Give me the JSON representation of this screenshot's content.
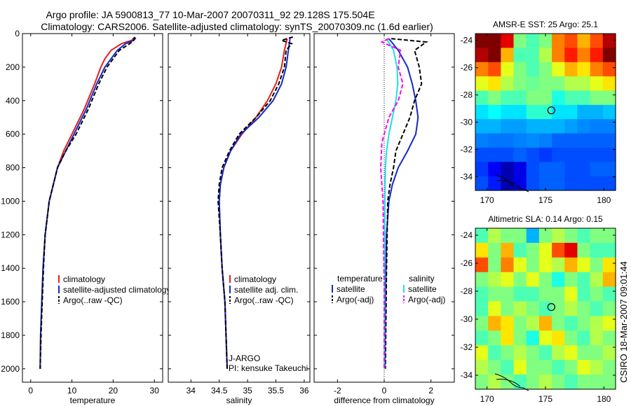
{
  "title": {
    "line1": "Argo profile: JA 5900813_77 10-Mar-2007 20070311_92 29.128S 175.504E",
    "line2": "Climatology: CARS2006. Satellite-adjusted climatology: synTS_20070309.nc (1.6d earlier)"
  },
  "side_label": "CSIRO 18-Mar-2007 09:01:44",
  "colors": {
    "climatology": "#e02020",
    "satellite": "#1428c8",
    "argo": "#000000",
    "sat_temp_diff": "#20e0e0",
    "sal_diff": "#ff00ff"
  },
  "chart_data": [
    {
      "type": "line",
      "id": "temperature",
      "xlabel": "temperature",
      "ylabel": "",
      "xlim": [
        -2,
        32
      ],
      "ylim": [
        2080,
        0
      ],
      "xticks": [
        0,
        10,
        20,
        30
      ],
      "yticks": [
        0,
        200,
        400,
        600,
        800,
        1000,
        1200,
        1400,
        1600,
        1800,
        2000
      ],
      "legend": [
        "climatology",
        "satellite-adjusted climatology",
        "Argo(..raw -QC)"
      ],
      "legend_placement": "bottom-right",
      "series": [
        {
          "name": "climatology",
          "style": "solid",
          "color": "#e02020",
          "x": [
            25,
            24.5,
            22,
            19.5,
            18,
            17,
            15.5,
            13,
            10,
            8,
            6.5,
            5.5,
            4.5,
            3.5,
            3,
            2.7,
            2.4,
            2.3
          ],
          "y": [
            25,
            40,
            60,
            100,
            150,
            200,
            300,
            450,
            600,
            700,
            800,
            900,
            1000,
            1200,
            1400,
            1600,
            1800,
            2000
          ]
        },
        {
          "name": "satellite-adjusted climatology",
          "style": "solid",
          "color": "#1428c8",
          "x": [
            25.5,
            25,
            23,
            21,
            19.5,
            18,
            16,
            13.5,
            10.5,
            8.5,
            6.5,
            5.5,
            4.5,
            3.5,
            3,
            2.7,
            2.4,
            2.3
          ],
          "y": [
            25,
            40,
            60,
            100,
            150,
            200,
            300,
            450,
            600,
            700,
            800,
            900,
            1000,
            1200,
            1400,
            1600,
            1800,
            2000
          ]
        },
        {
          "name": "Argo(..raw -QC)",
          "style": "dashed",
          "color": "#000000",
          "x": [
            25.2,
            25,
            24,
            21.5,
            20,
            18.5,
            16.5,
            14,
            11,
            8.5,
            6.5,
            5.5,
            4.5,
            3.5,
            3.1,
            2.8,
            2.5,
            2.3
          ],
          "y": [
            20,
            40,
            60,
            100,
            150,
            200,
            300,
            450,
            600,
            700,
            800,
            900,
            1000,
            1200,
            1400,
            1600,
            1800,
            2000
          ]
        }
      ]
    },
    {
      "type": "line",
      "id": "salinity",
      "xlabel": "salinity",
      "ylabel": "",
      "xlim": [
        33.6,
        36.1
      ],
      "ylim": [
        2080,
        0
      ],
      "xticks": [
        34,
        34.5,
        35,
        35.5,
        36
      ],
      "yticks": [
        0,
        200,
        400,
        600,
        800,
        1000,
        1200,
        1400,
        1600,
        1800,
        2000
      ],
      "legend": [
        "climatology",
        "satellite adj. clim.",
        "Argo(..raw -QC)"
      ],
      "legend_placement": "bottom-right",
      "annotation": [
        "J-ARGO",
        "PI: kensuke Takeuchi"
      ],
      "series": [
        {
          "name": "climatology",
          "style": "solid",
          "color": "#e02020",
          "x": [
            35.7,
            35.65,
            35.6,
            35.5,
            35.35,
            35.15,
            34.9,
            34.7,
            34.58,
            34.52,
            34.5,
            34.52,
            34.55,
            34.6,
            34.62,
            34.64
          ],
          "y": [
            30,
            100,
            200,
            300,
            400,
            500,
            600,
            700,
            800,
            900,
            1000,
            1200,
            1400,
            1600,
            1800,
            2000
          ]
        },
        {
          "name": "satellite adj. clim.",
          "style": "solid",
          "color": "#1428c8",
          "x": [
            35.75,
            35.72,
            35.68,
            35.6,
            35.45,
            35.2,
            34.88,
            34.7,
            34.58,
            34.52,
            34.5,
            34.52,
            34.55,
            34.6,
            34.62,
            34.64
          ],
          "y": [
            30,
            100,
            200,
            300,
            400,
            500,
            600,
            700,
            800,
            900,
            1000,
            1200,
            1400,
            1600,
            1800,
            2000
          ]
        },
        {
          "name": "Argo(..raw -QC)",
          "style": "dashed",
          "color": "#000000",
          "x": [
            35.8,
            35.6,
            35.78,
            35.68,
            35.65,
            35.55,
            35.4,
            35.15,
            34.85,
            34.68,
            34.55,
            34.5,
            34.48,
            34.52,
            34.55,
            34.6,
            34.62,
            34.64
          ],
          "y": [
            20,
            40,
            60,
            100,
            200,
            300,
            400,
            500,
            600,
            700,
            800,
            900,
            1000,
            1200,
            1400,
            1600,
            1800,
            2000
          ]
        }
      ]
    },
    {
      "type": "line",
      "id": "difference",
      "xlabel": "difference from climatology",
      "ylabel": "",
      "xlim": [
        -3,
        3
      ],
      "ylim": [
        2080,
        0
      ],
      "xticks": [
        -2,
        0,
        2
      ],
      "yticks": [
        0,
        200,
        400,
        600,
        800,
        1000,
        1200,
        1400,
        1600,
        1800,
        2000
      ],
      "legend_groups": [
        {
          "title": "temperature",
          "items": [
            "satellite",
            "Argo(-adj)"
          ]
        },
        {
          "title": "salinity",
          "items": [
            "satellite",
            "Argo(-adj)"
          ]
        }
      ],
      "legend_placement": "bottom",
      "series": [
        {
          "name": "temperature satellite",
          "style": "solid",
          "color": "#1428c8",
          "x": [
            0.2,
            0.6,
            1.0,
            1.2,
            1.35,
            1.45,
            1.35,
            1.0,
            0.6,
            0.35,
            0.2,
            0.1,
            0.05,
            0.03
          ],
          "y": [
            30,
            100,
            200,
            300,
            400,
            500,
            600,
            700,
            800,
            900,
            1000,
            1200,
            1600,
            2000
          ]
        },
        {
          "name": "temperature Argo(-adj)",
          "style": "dashed",
          "color": "#000000",
          "x": [
            0.3,
            1.8,
            1.3,
            1.5,
            1.6,
            1.3,
            1.1,
            0.8,
            0.5,
            0.4,
            0.25,
            0.15,
            0.1,
            0.05
          ],
          "y": [
            30,
            50,
            100,
            200,
            300,
            400,
            500,
            600,
            700,
            800,
            900,
            1000,
            1400,
            2000
          ]
        },
        {
          "name": "salinity satellite",
          "style": "solid",
          "color": "#20e0e0",
          "x": [
            0.1,
            0.4,
            0.55,
            0.58,
            0.5,
            0.35,
            0.2,
            0.1,
            0.05,
            0.03,
            0.02,
            0.01
          ],
          "y": [
            30,
            100,
            200,
            300,
            400,
            500,
            600,
            700,
            800,
            1000,
            1500,
            2000
          ]
        },
        {
          "name": "salinity Argo(-adj)",
          "style": "dashed",
          "color": "#ff00ff",
          "x": [
            0.2,
            -0.1,
            0.7,
            0.6,
            0.8,
            0.6,
            0.2,
            -0.1,
            -0.15,
            -0.05,
            0.0,
            0.0
          ],
          "y": [
            30,
            50,
            100,
            200,
            300,
            400,
            500,
            650,
            800,
            1000,
            1500,
            2000
          ]
        }
      ]
    },
    {
      "type": "heatmap",
      "id": "sst-map",
      "title": "AMSR-E SST: 25 Argo: 25.1",
      "xlim": [
        169,
        181
      ],
      "ylim": [
        -35,
        -23.5
      ],
      "xticks": [
        170,
        175,
        180
      ],
      "yticks": [
        -24,
        -26,
        -28,
        -30,
        -32,
        -34
      ],
      "marker": {
        "lon": 175.5,
        "lat": -29.13
      },
      "field": [
        [
          1.0,
          1.0,
          0.9,
          0.5,
          0.45,
          0.5,
          0.75,
          0.8,
          0.7,
          0.8,
          0.95
        ],
        [
          0.95,
          1.0,
          0.7,
          0.45,
          0.45,
          0.55,
          0.75,
          0.85,
          0.75,
          0.85,
          1.0
        ],
        [
          0.75,
          0.8,
          0.6,
          0.5,
          0.45,
          0.5,
          0.6,
          0.7,
          0.65,
          0.75,
          0.8
        ],
        [
          0.6,
          0.65,
          0.55,
          0.5,
          0.48,
          0.5,
          0.5,
          0.55,
          0.55,
          0.6,
          0.65
        ],
        [
          0.45,
          0.5,
          0.45,
          0.45,
          0.5,
          0.5,
          0.4,
          0.45,
          0.45,
          0.5,
          0.5
        ],
        [
          0.35,
          0.38,
          0.35,
          0.35,
          0.42,
          0.42,
          0.35,
          0.35,
          0.3,
          0.3,
          0.32
        ],
        [
          0.3,
          0.3,
          0.28,
          0.28,
          0.3,
          0.3,
          0.3,
          0.28,
          0.26,
          0.25,
          0.25
        ],
        [
          0.25,
          0.24,
          0.24,
          0.25,
          0.26,
          0.25,
          0.22,
          0.22,
          0.22,
          0.22,
          0.22
        ],
        [
          0.2,
          0.2,
          0.2,
          0.22,
          0.2,
          0.18,
          0.2,
          0.2,
          0.2,
          0.2,
          0.2
        ],
        [
          0.18,
          0.12,
          0.05,
          0.1,
          0.2,
          0.22,
          0.22,
          0.2,
          0.2,
          0.22,
          0.22
        ],
        [
          0.2,
          0.15,
          0.05,
          0.1,
          0.2,
          0.22,
          0.22,
          0.2,
          0.2,
          0.2,
          0.2
        ]
      ]
    },
    {
      "type": "heatmap",
      "id": "sla-map",
      "title": "Altimetric SLA: 0.14 Argo: 0.15",
      "xlim": [
        169,
        181
      ],
      "ylim": [
        -35,
        -23.5
      ],
      "xticks": [
        170,
        175,
        180
      ],
      "yticks": [
        -24,
        -26,
        -28,
        -30,
        -32,
        -34
      ],
      "marker": {
        "lon": 175.5,
        "lat": -29.13
      },
      "field": [
        [
          0.45,
          0.55,
          0.5,
          0.5,
          0.3,
          0.5,
          0.55,
          0.5,
          0.45,
          0.5,
          0.5
        ],
        [
          0.65,
          0.5,
          0.7,
          0.45,
          0.5,
          0.6,
          0.8,
          0.9,
          0.5,
          0.45,
          0.45
        ],
        [
          0.8,
          0.5,
          0.75,
          0.6,
          0.5,
          0.6,
          0.55,
          0.7,
          0.6,
          0.5,
          0.65
        ],
        [
          0.5,
          0.55,
          0.6,
          0.5,
          0.6,
          0.5,
          0.4,
          0.5,
          0.45,
          0.55,
          0.7
        ],
        [
          0.45,
          0.5,
          0.5,
          0.45,
          0.45,
          0.5,
          0.5,
          0.6,
          0.45,
          0.5,
          0.45
        ],
        [
          0.45,
          0.6,
          0.5,
          0.55,
          0.5,
          0.45,
          0.5,
          0.55,
          0.5,
          0.45,
          0.5
        ],
        [
          0.5,
          0.7,
          0.65,
          0.5,
          0.55,
          0.7,
          0.5,
          0.45,
          0.5,
          0.55,
          0.6
        ],
        [
          0.45,
          0.5,
          0.65,
          0.5,
          0.4,
          0.6,
          0.65,
          0.5,
          0.45,
          0.55,
          0.5
        ],
        [
          0.6,
          0.45,
          0.5,
          0.55,
          0.5,
          0.45,
          0.55,
          0.6,
          0.5,
          0.5,
          0.55
        ],
        [
          0.55,
          0.5,
          0.45,
          0.6,
          0.5,
          0.5,
          0.45,
          0.5,
          0.6,
          0.55,
          0.5
        ],
        [
          0.5,
          0.55,
          0.5,
          0.45,
          0.5,
          0.55,
          0.5,
          0.45,
          0.5,
          0.5,
          0.5
        ]
      ]
    }
  ]
}
